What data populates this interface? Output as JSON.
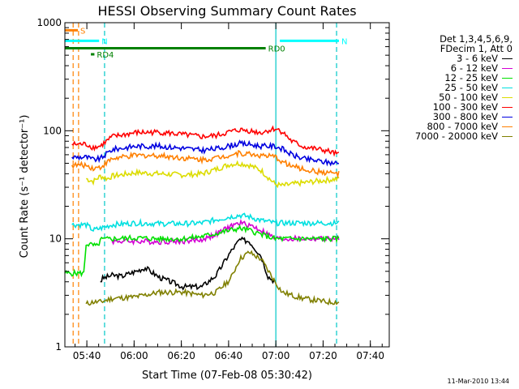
{
  "chart_data": {
    "type": "line",
    "title": "HESSI Observing Summary Count Rates",
    "xlabel": "Start Time (07-Feb-08 05:30:42)",
    "ylabel": "Count Rate (s⁻¹ detector⁻¹)",
    "yscale": "log",
    "ylim": [
      1,
      1000
    ],
    "xlim": [
      "05:30:42",
      "07:48:00"
    ],
    "x_unit": "minutes after 05:30:42",
    "xticks": [
      {
        "label": "05:40",
        "value": 9.3
      },
      {
        "label": "06:00",
        "value": 29.3
      },
      {
        "label": "06:20",
        "value": 49.3
      },
      {
        "label": "06:40",
        "value": 69.3
      },
      {
        "label": "07:00",
        "value": 89.3
      },
      {
        "label": "07:20",
        "value": 109.3
      },
      {
        "label": "07:40",
        "value": 129.3
      }
    ],
    "yticks": [
      {
        "label": "1",
        "value": 1
      },
      {
        "label": "10",
        "value": 10
      },
      {
        "label": "100",
        "value": 100
      },
      {
        "label": "1000",
        "value": 1000
      }
    ],
    "legend_header": [
      "Det 1,3,4,5,6,9,",
      "FDecim 1, Att 0"
    ],
    "legend_position": "right",
    "series": [
      {
        "name": "3 - 6 keV",
        "color": "#000000",
        "x": [
          3,
          15,
          16,
          20,
          24,
          30,
          34,
          40,
          50,
          58,
          64,
          70,
          74,
          78,
          83,
          86,
          89
        ],
        "y": [
          null,
          4,
          4.3,
          4.6,
          4.5,
          5,
          5.4,
          4.4,
          3.6,
          3.6,
          4.6,
          7.5,
          9.8,
          9.5,
          7,
          4.5,
          4
        ]
      },
      {
        "name": "6 - 12 keV",
        "color": "#d400d4",
        "x": [
          3,
          20,
          30,
          40,
          50,
          58,
          64,
          70,
          74,
          78,
          83,
          89,
          96,
          101,
          106,
          111,
          116
        ],
        "y": [
          null,
          9.5,
          9.5,
          9.4,
          9.5,
          9.8,
          11,
          13,
          14,
          13.5,
          12,
          10,
          10,
          10,
          10,
          10,
          10
        ]
      },
      {
        "name": "12 - 25 keV",
        "color": "#00e000",
        "x": [
          0,
          8,
          9,
          14,
          15,
          20,
          30,
          40,
          50,
          58,
          64,
          70,
          74,
          78,
          83,
          89,
          96,
          101,
          106,
          111,
          116
        ],
        "y": [
          4.8,
          4.8,
          9,
          8.5,
          9.8,
          10,
          10.2,
          10,
          10,
          10.5,
          11.2,
          12,
          12.5,
          12,
          11,
          10,
          10,
          10,
          10,
          10,
          10
        ]
      },
      {
        "name": "25 - 50 keV",
        "color": "#00e0e0",
        "x": [
          3,
          9,
          12,
          15,
          20,
          30,
          40,
          50,
          58,
          64,
          70,
          74,
          78,
          83,
          89,
          96,
          101,
          106,
          111,
          116
        ],
        "y": [
          13.5,
          13.5,
          12,
          12.5,
          13.5,
          14,
          13.8,
          13.8,
          14,
          15,
          16,
          16.5,
          16,
          14.8,
          14,
          14,
          14,
          14,
          14,
          14
        ]
      },
      {
        "name": "50 - 100 keV",
        "color": "#dcdc00",
        "x": [
          3,
          9,
          12,
          15,
          18,
          20,
          30,
          40,
          50,
          58,
          64,
          70,
          74,
          78,
          83,
          89,
          92,
          96,
          101,
          106,
          111,
          116
        ],
        "y": [
          null,
          36,
          34,
          38,
          36,
          38,
          41,
          40,
          39,
          40,
          44,
          49,
          50,
          48,
          43,
          32,
          31,
          32,
          33,
          34,
          35,
          36
        ]
      },
      {
        "name": "100 - 300 keV",
        "color": "#ff0000",
        "x": [
          3,
          9,
          12,
          15,
          20,
          30,
          40,
          50,
          58,
          64,
          70,
          74,
          78,
          83,
          89,
          92,
          96,
          101,
          106,
          111,
          116
        ],
        "y": [
          75,
          75,
          70,
          72,
          88,
          96,
          97,
          92,
          88,
          90,
          98,
          102,
          100,
          96,
          105,
          98,
          80,
          71,
          68,
          65,
          60
        ]
      },
      {
        "name": "300 - 800 keV",
        "color": "#0000e0",
        "x": [
          3,
          9,
          12,
          15,
          20,
          30,
          40,
          50,
          58,
          64,
          70,
          74,
          78,
          83,
          89,
          92,
          96,
          101,
          106,
          111,
          116
        ],
        "y": [
          57,
          57,
          54,
          55,
          67,
          72,
          72,
          69,
          66,
          68,
          73,
          76,
          75,
          72,
          72,
          68,
          60,
          55,
          53,
          51,
          50
        ]
      },
      {
        "name": "800 - 7000 keV",
        "color": "#ff8000",
        "x": [
          3,
          9,
          12,
          15,
          20,
          30,
          40,
          50,
          58,
          64,
          70,
          74,
          78,
          83,
          89,
          92,
          96,
          101,
          106,
          111,
          116
        ],
        "y": [
          48,
          48,
          45,
          46,
          55,
          59,
          59,
          56,
          54,
          56,
          60,
          62,
          61,
          59,
          57,
          52,
          47,
          44,
          42,
          41,
          40
        ]
      },
      {
        "name": "7000 - 20000 keV",
        "color": "#808000",
        "x": [
          3,
          9,
          12,
          15,
          20,
          30,
          40,
          50,
          58,
          64,
          70,
          74,
          78,
          83,
          89,
          92,
          96,
          101,
          106,
          111,
          116
        ],
        "y": [
          null,
          2.5,
          2.6,
          2.6,
          2.8,
          2.9,
          3.2,
          3.2,
          3,
          3.2,
          4.2,
          6.5,
          7.5,
          6.5,
          4,
          3.2,
          3,
          2.8,
          2.7,
          2.6,
          2.6
        ]
      }
    ],
    "flag_bars": [
      {
        "label": "S",
        "color": "#ff8000",
        "x_start": 0,
        "x_end": 5.5,
        "y": 850
      },
      {
        "label": "N",
        "color": "#00ffff",
        "x_start": 0,
        "x_end": 14.5,
        "y": 680
      },
      {
        "label": "N",
        "color": "#00ffff",
        "x_start": 91,
        "x_end": 116,
        "y": 680
      },
      {
        "label": "RD0",
        "color": "#008000",
        "x_start": 0,
        "x_end": 85,
        "y": 580
      },
      {
        "label": "RD4",
        "color": "#008000",
        "x_start": 11,
        "x_end": 12.5,
        "y": 510
      }
    ],
    "vertical_markers": [
      {
        "x": 3.5,
        "color": "#ff8000",
        "style": "dashed"
      },
      {
        "x": 5.8,
        "color": "#ff8000",
        "style": "dashed"
      },
      {
        "x": 16.8,
        "color": "#00c8c8",
        "style": "dashed"
      },
      {
        "x": 89.3,
        "color": "#00c8c8",
        "style": "solid"
      },
      {
        "x": 115,
        "color": "#00c8c8",
        "style": "dashed"
      }
    ]
  },
  "footer": {
    "timestamp": "11-Mar-2010 13:44"
  }
}
